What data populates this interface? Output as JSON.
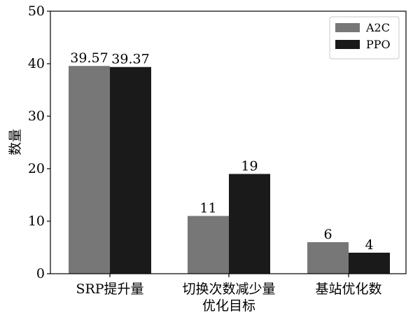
{
  "chart_data": {
    "type": "bar",
    "categories": [
      "SRP提升量",
      "切换次数减少量\n优化目标",
      "基站优化数"
    ],
    "series": [
      {
        "name": "A2C",
        "values": [
          39.57,
          11,
          6
        ],
        "labels": [
          "39.57",
          "11",
          "6"
        ],
        "color": "#777777"
      },
      {
        "name": "PPO",
        "values": [
          39.37,
          19,
          4
        ],
        "labels": [
          "39.37",
          "19",
          "4"
        ],
        "color": "#1a1a1a"
      }
    ],
    "title": "",
    "xlabel": "",
    "ylabel": "数量",
    "ylim": [
      0,
      50
    ],
    "yticks": [
      0,
      10,
      20,
      30,
      40,
      50
    ],
    "legend_position": "top-right",
    "grid": false
  }
}
